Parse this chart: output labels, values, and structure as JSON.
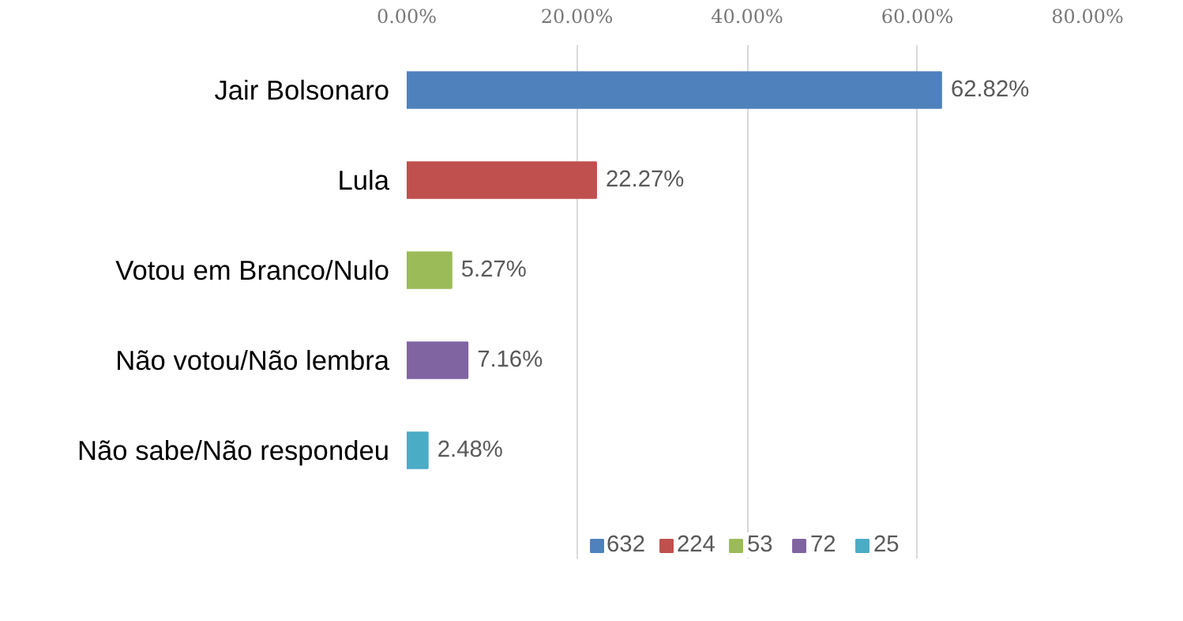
{
  "chart_data": {
    "type": "bar",
    "orientation": "horizontal",
    "categories": [
      "Jair Bolsonaro",
      "Lula",
      "Votou em Branco/Nulo",
      "Não votou/Não lembra",
      "Não sabe/Não respondeu"
    ],
    "series": [
      {
        "name": "632",
        "color": "#4f81bd",
        "values": [
          62.82,
          null,
          null,
          null,
          null
        ],
        "value_labels": [
          "62.82%",
          null,
          null,
          null,
          null
        ]
      },
      {
        "name": "224",
        "color": "#c0504d",
        "values": [
          null,
          22.27,
          null,
          null,
          null
        ],
        "value_labels": [
          null,
          "22.27%",
          null,
          null,
          null
        ]
      },
      {
        "name": "53",
        "color": "#9bbb59",
        "values": [
          null,
          null,
          5.27,
          null,
          null
        ],
        "value_labels": [
          null,
          null,
          "5.27%",
          null,
          null
        ]
      },
      {
        "name": "72",
        "color": "#8064a2",
        "values": [
          null,
          null,
          null,
          7.16,
          null
        ],
        "value_labels": [
          null,
          null,
          null,
          "7.16%",
          null
        ]
      },
      {
        "name": "25",
        "color": "#4bacc6",
        "values": [
          null,
          null,
          null,
          null,
          2.48
        ],
        "value_labels": [
          null,
          null,
          null,
          null,
          "2.48%"
        ]
      }
    ],
    "xlim": [
      0,
      80
    ],
    "xticks": [
      {
        "value": 0,
        "label": "0.00%"
      },
      {
        "value": 20,
        "label": "20.00%"
      },
      {
        "value": 40,
        "label": "40.00%"
      },
      {
        "value": 60,
        "label": "60.00%"
      },
      {
        "value": 80,
        "label": "80.00%"
      }
    ],
    "grid": "x",
    "legend": "bottom"
  }
}
